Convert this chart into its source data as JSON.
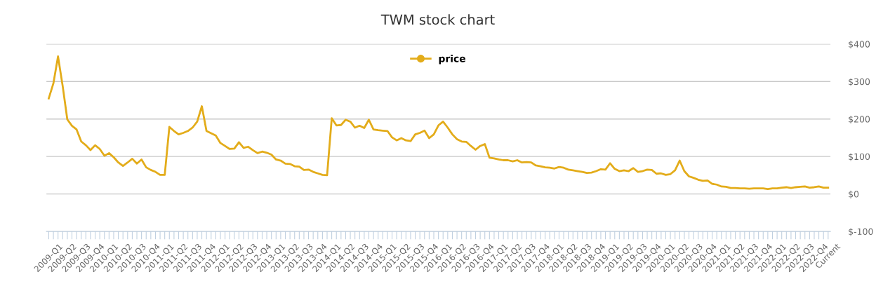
{
  "chart_data": {
    "type": "line",
    "title": "TWM stock chart",
    "categories": [
      "2009-Q1",
      null,
      null,
      "2009-Q2",
      null,
      null,
      "2009-Q3",
      null,
      null,
      "2009-Q4",
      null,
      null,
      "2010-Q1",
      null,
      null,
      "2010-Q2",
      null,
      null,
      "2010-Q3",
      null,
      null,
      "2010-Q4",
      null,
      null,
      "2011-Q1",
      null,
      null,
      "2011-Q2",
      null,
      null,
      "2011-Q3",
      null,
      null,
      "2011-Q4",
      null,
      null,
      "2012-Q1",
      null,
      null,
      "2012-Q2",
      null,
      null,
      "2012-Q3",
      null,
      null,
      "2012-Q4",
      null,
      null,
      "2013-Q1",
      null,
      null,
      "2013-Q2",
      null,
      null,
      "2013-Q3",
      null,
      null,
      "2013-Q4",
      null,
      null,
      "2014-Q1",
      null,
      null,
      "2014-Q2",
      null,
      null,
      "2014-Q3",
      null,
      null,
      "2014-Q4",
      null,
      null,
      "2015-Q1",
      null,
      null,
      "2015-Q2",
      null,
      null,
      "2015-Q3",
      null,
      null,
      "2015-Q4",
      null,
      null,
      "2016-Q1",
      null,
      null,
      "2016-Q2",
      null,
      null,
      "2016-Q3",
      null,
      null,
      "2016-Q4",
      null,
      null,
      "2017-Q1",
      null,
      null,
      "2017-Q2",
      null,
      null,
      "2017-Q3",
      null,
      null,
      "2017-Q4",
      null,
      null,
      "2018-Q1",
      null,
      null,
      "2018-Q2",
      null,
      null,
      "2018-Q3",
      null,
      null,
      "2018-Q4",
      null,
      null,
      "2019-Q1",
      null,
      null,
      "2019-Q2",
      null,
      null,
      "2019-Q3",
      null,
      null,
      "2019-Q4",
      null,
      null,
      "2020-Q1",
      null,
      null,
      "2020-Q2",
      null,
      null,
      "2020-Q3",
      null,
      null,
      "2020-Q4",
      null,
      null,
      "2021-Q1",
      null,
      null,
      "2021-Q2",
      null,
      null,
      "2021-Q3",
      null,
      null,
      "2021-Q4",
      null,
      null,
      "2022-Q1",
      null,
      null,
      "2022-Q2",
      null,
      null,
      "2022-Q3",
      null,
      null,
      "2022-Q4",
      null,
      null,
      "Current"
    ],
    "series": [
      {
        "name": "price",
        "color": "#e3ac1a",
        "values": [
          255,
          295,
          367,
          288,
          199,
          182,
          172,
          140,
          130,
          117,
          130,
          120,
          102,
          109,
          98,
          84,
          75,
          84,
          94,
          81,
          92,
          71,
          64,
          59,
          51,
          51,
          179,
          168,
          159,
          163,
          168,
          177,
          193,
          234,
          168,
          162,
          156,
          136,
          128,
          120,
          121,
          138,
          123,
          126,
          117,
          109,
          113,
          110,
          105,
          92,
          89,
          81,
          80,
          74,
          73,
          64,
          65,
          59,
          55,
          51,
          50,
          202,
          183,
          184,
          198,
          193,
          177,
          182,
          176,
          198,
          172,
          170,
          169,
          168,
          151,
          143,
          149,
          143,
          141,
          159,
          163,
          169,
          149,
          159,
          183,
          193,
          177,
          159,
          146,
          140,
          139,
          128,
          118,
          128,
          133,
          97,
          95,
          92,
          90,
          90,
          87,
          90,
          84,
          85,
          84,
          76,
          74,
          71,
          70,
          68,
          72,
          70,
          65,
          63,
          61,
          59,
          56,
          57,
          61,
          66,
          65,
          82,
          67,
          61,
          63,
          61,
          69,
          59,
          61,
          65,
          64,
          54,
          55,
          51,
          53,
          63,
          89,
          61,
          47,
          43,
          38,
          35,
          36,
          27,
          25,
          20,
          19,
          16,
          16,
          15,
          15,
          14,
          15,
          15,
          15,
          13,
          15,
          15,
          17,
          18,
          16,
          18,
          19,
          20,
          17,
          18,
          20,
          17,
          17
        ]
      }
    ],
    "ylim": [
      -100,
      400
    ],
    "yticks": [
      {
        "value": -100,
        "label": "$-100"
      },
      {
        "value": 0,
        "label": "$0"
      },
      {
        "value": 100,
        "label": "$100"
      },
      {
        "value": 200,
        "label": "$200"
      },
      {
        "value": 300,
        "label": "$300"
      },
      {
        "value": 400,
        "label": "$400"
      }
    ],
    "grid": "y",
    "legend": "top",
    "marker": "none",
    "line_style": "solid"
  }
}
